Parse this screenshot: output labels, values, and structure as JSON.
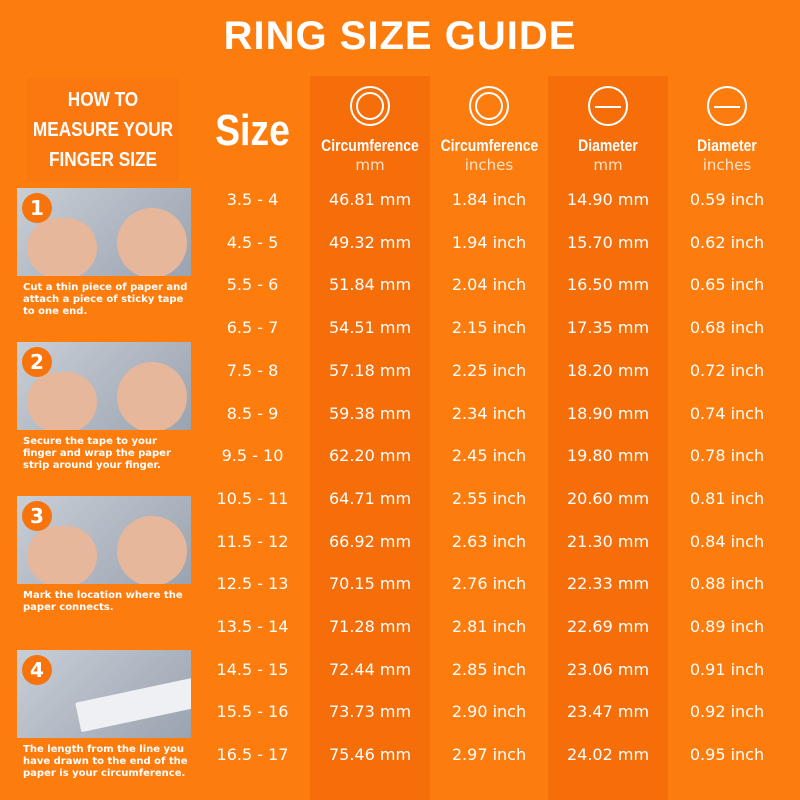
{
  "title": "RING SIZE GUIDE",
  "howto": {
    "title": "HOW TO MEASURE YOUR FINGER SIZE",
    "steps": [
      {
        "number": "1",
        "text": "Cut a thin piece of paper and attach a piece of sticky tape to one end."
      },
      {
        "number": "2",
        "text": "Secure the tape to your finger and wrap the paper strip around your finger."
      },
      {
        "number": "3",
        "text": "Mark the location where the paper connects."
      },
      {
        "number": "4",
        "text": "The length from the line you have drawn to the end of the paper is your circumference."
      }
    ]
  },
  "table": {
    "columns": [
      {
        "name": "Size",
        "unit": ""
      },
      {
        "name": "Circumference",
        "unit": "mm",
        "icon": "ring-circumference-icon"
      },
      {
        "name": "Circumference",
        "unit": "inches",
        "icon": "ring-circumference-icon"
      },
      {
        "name": "Diameter",
        "unit": "mm",
        "icon": "ring-diameter-icon"
      },
      {
        "name": "Diameter",
        "unit": "inches",
        "icon": "ring-diameter-icon"
      }
    ],
    "rows": [
      [
        "3.5 - 4",
        "46.81 mm",
        "1.84 inch",
        "14.90 mm",
        "0.59 inch"
      ],
      [
        "4.5 - 5",
        "49.32 mm",
        "1.94 inch",
        "15.70 mm",
        "0.62 inch"
      ],
      [
        "5.5 - 6",
        "51.84 mm",
        "2.04 inch",
        "16.50 mm",
        "0.65 inch"
      ],
      [
        "6.5 - 7",
        "54.51 mm",
        "2.15 inch",
        "17.35 mm",
        "0.68 inch"
      ],
      [
        "7.5 - 8",
        "57.18 mm",
        "2.25 inch",
        "18.20 mm",
        "0.72 inch"
      ],
      [
        "8.5 - 9",
        "59.38 mm",
        "2.34 inch",
        "18.90 mm",
        "0.74 inch"
      ],
      [
        "9.5 - 10",
        "62.20 mm",
        "2.45 inch",
        "19.80 mm",
        "0.78 inch"
      ],
      [
        "10.5 - 11",
        "64.71 mm",
        "2.55 inch",
        "20.60 mm",
        "0.81 inch"
      ],
      [
        "11.5 - 12",
        "66.92 mm",
        "2.63 inch",
        "21.30 mm",
        "0.84 inch"
      ],
      [
        "12.5 - 13",
        "70.15 mm",
        "2.76 inch",
        "22.33 mm",
        "0.88 inch"
      ],
      [
        "13.5 - 14",
        "71.28 mm",
        "2.81 inch",
        "22.69 mm",
        "0.89 inch"
      ],
      [
        "14.5 - 15",
        "72.44 mm",
        "2.85 inch",
        "23.06 mm",
        "0.91 inch"
      ],
      [
        "15.5 - 16",
        "73.73 mm",
        "2.90 inch",
        "23.47 mm",
        "0.92 inch"
      ],
      [
        "16.5 - 17",
        "75.46 mm",
        "2.97 inch",
        "24.02 mm",
        "0.95 inch"
      ]
    ]
  },
  "colors": {
    "background": "#fd7c0e",
    "band": "#f56e0a",
    "text": "#ffffff"
  }
}
